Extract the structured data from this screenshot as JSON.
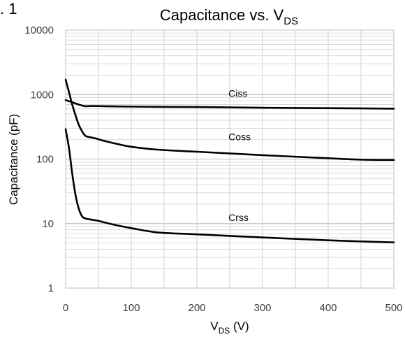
{
  "figure_label": ". 1",
  "chart_data": {
    "type": "line",
    "title": {
      "main": "Capacitance vs. V",
      "sub": "DS"
    },
    "xlabel": {
      "main": "V",
      "sub": "DS",
      "rest": " (V)"
    },
    "ylabel": "Capacitance (pF)",
    "xlim": [
      0,
      500
    ],
    "ylim": [
      1,
      10000
    ],
    "y_scale": "log",
    "grid": true,
    "x_ticks": [
      0,
      100,
      200,
      300,
      400,
      500
    ],
    "x_tick_labels": [
      "0",
      "100",
      "200",
      "300",
      "400",
      "500"
    ],
    "y_ticks": [
      1,
      10,
      100,
      1000,
      10000
    ],
    "y_tick_labels": [
      "1",
      "10",
      "100",
      "1000",
      "10000"
    ],
    "series": [
      {
        "name": "Ciss",
        "color": "#000000",
        "points": [
          [
            0,
            820
          ],
          [
            10,
            760
          ],
          [
            20,
            700
          ],
          [
            30,
            660
          ],
          [
            40,
            665
          ],
          [
            60,
            660
          ],
          [
            100,
            650
          ],
          [
            200,
            640
          ],
          [
            300,
            625
          ],
          [
            400,
            615
          ],
          [
            500,
            605
          ]
        ]
      },
      {
        "name": "Coss",
        "color": "#000000",
        "points": [
          [
            0,
            1700
          ],
          [
            5,
            1100
          ],
          [
            10,
            700
          ],
          [
            15,
            480
          ],
          [
            20,
            340
          ],
          [
            25,
            270
          ],
          [
            30,
            230
          ],
          [
            35,
            220
          ],
          [
            45,
            210
          ],
          [
            60,
            190
          ],
          [
            80,
            170
          ],
          [
            100,
            155
          ],
          [
            140,
            140
          ],
          [
            200,
            130
          ],
          [
            300,
            115
          ],
          [
            400,
            103
          ],
          [
            450,
            98
          ],
          [
            500,
            97
          ]
        ]
      },
      {
        "name": "Crss",
        "color": "#000000",
        "points": [
          [
            0,
            290
          ],
          [
            5,
            150
          ],
          [
            10,
            60
          ],
          [
            15,
            28
          ],
          [
            20,
            17
          ],
          [
            25,
            13
          ],
          [
            30,
            12
          ],
          [
            40,
            11.5
          ],
          [
            50,
            11
          ],
          [
            70,
            9.8
          ],
          [
            100,
            8.5
          ],
          [
            140,
            7.3
          ],
          [
            200,
            6.8
          ],
          [
            300,
            6.1
          ],
          [
            400,
            5.5
          ],
          [
            500,
            5.1
          ]
        ]
      }
    ],
    "annotations": [
      {
        "text": "Ciss",
        "x": 248,
        "y": 920
      },
      {
        "text": "Coss",
        "x": 248,
        "y": 195
      },
      {
        "text": "Crss",
        "x": 248,
        "y": 11
      }
    ]
  }
}
